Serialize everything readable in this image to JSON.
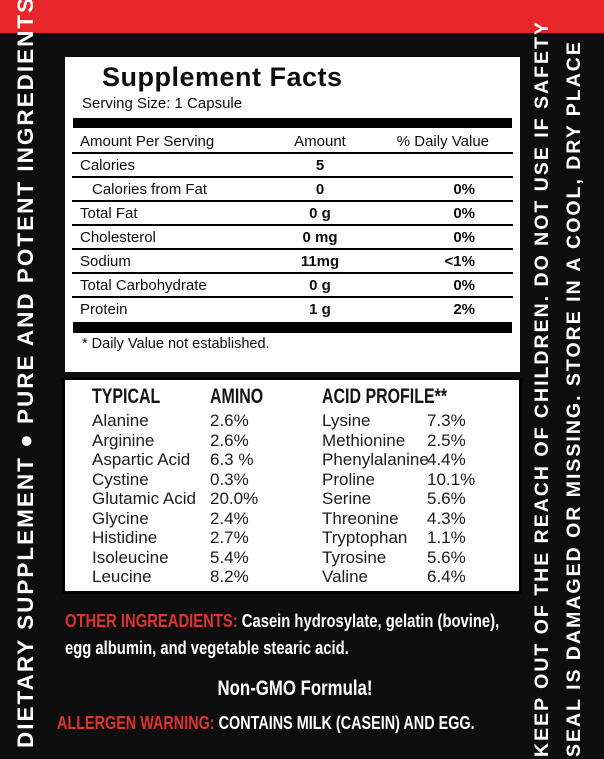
{
  "colors": {
    "red_bar": "#e82528",
    "red_text": "#df342b",
    "background": "#0d0d0d",
    "panel": "#ffffff"
  },
  "left_strip": {
    "text": "DIETARY SUPPLEMENT ● PURE AND POTENT INGREDIENTS"
  },
  "right_strip": {
    "line1": "KEEP OUT OF THE REACH OF CHILDREN. DO NOT USE IF SAFETY",
    "line2": "SEAL IS DAMAGED OR MISSING. STORE IN A COOL, DRY PLACE"
  },
  "facts": {
    "title": "Supplement Facts",
    "serving_size": "Serving Size: 1 Capsule",
    "columns": {
      "amount_per_serving": "Amount Per Serving",
      "amount": "Amount",
      "daily_value": "% Daily Value"
    },
    "rows": [
      {
        "name": "Calories",
        "amount": "5",
        "dv": "",
        "indent": false
      },
      {
        "name": "Calories from Fat",
        "amount": "0",
        "dv": "0%",
        "indent": true
      },
      {
        "name": "Total Fat",
        "amount": "0 g",
        "dv": "0%",
        "indent": false
      },
      {
        "name": "Cholesterol",
        "amount": "0 mg",
        "dv": "0%",
        "indent": false
      },
      {
        "name": "Sodium",
        "amount": "11mg",
        "dv": "<1%",
        "indent": false
      },
      {
        "name": "Total Carbohydrate",
        "amount": "0 g",
        "dv": "0%",
        "indent": false
      },
      {
        "name": "Protein",
        "amount": "1 g",
        "dv": "2%",
        "indent": false
      }
    ],
    "footnote": "* Daily Value not established."
  },
  "amino": {
    "header": {
      "col1": "TYPICAL",
      "col2": "AMINO",
      "col3": "ACID PROFILE**"
    },
    "left": [
      {
        "name": "Alanine",
        "value": "2.6%"
      },
      {
        "name": "Arginine",
        "value": "2.6%"
      },
      {
        "name": "Aspartic Acid",
        "value": "6.3 %"
      },
      {
        "name": "Cystine",
        "value": "0.3%"
      },
      {
        "name": "Glutamic Acid",
        "value": "20.0%"
      },
      {
        "name": "Glycine",
        "value": "2.4%"
      },
      {
        "name": "Histidine",
        "value": "2.7%"
      },
      {
        "name": "Isoleucine",
        "value": "5.4%"
      },
      {
        "name": "Leucine",
        "value": "8.2%"
      }
    ],
    "right": [
      {
        "name": "Lysine",
        "value": "7.3%"
      },
      {
        "name": "Methionine",
        "value": "2.5%"
      },
      {
        "name": "Phenylalanine",
        "value": "4.4%"
      },
      {
        "name": "Proline",
        "value": "10.1%"
      },
      {
        "name": "Serine",
        "value": "5.6%"
      },
      {
        "name": "Threonine",
        "value": "4.3%"
      },
      {
        "name": "Tryptophan",
        "value": "1.1%"
      },
      {
        "name": "Tyrosine",
        "value": "5.6%"
      },
      {
        "name": "Valine",
        "value": "6.4%"
      }
    ]
  },
  "other_ingredients": {
    "label": "OTHER INGREADIENTS:",
    "line1": "Casein hydrosylate, gelatin (bovine),",
    "line2": "egg albumin, and vegetable stearic acid."
  },
  "non_gmo": "Non-GMO Formula!",
  "allergen": {
    "label": "ALLERGEN WARNING:",
    "text": "CONTAINS MILK (CASEIN) AND EGG."
  }
}
